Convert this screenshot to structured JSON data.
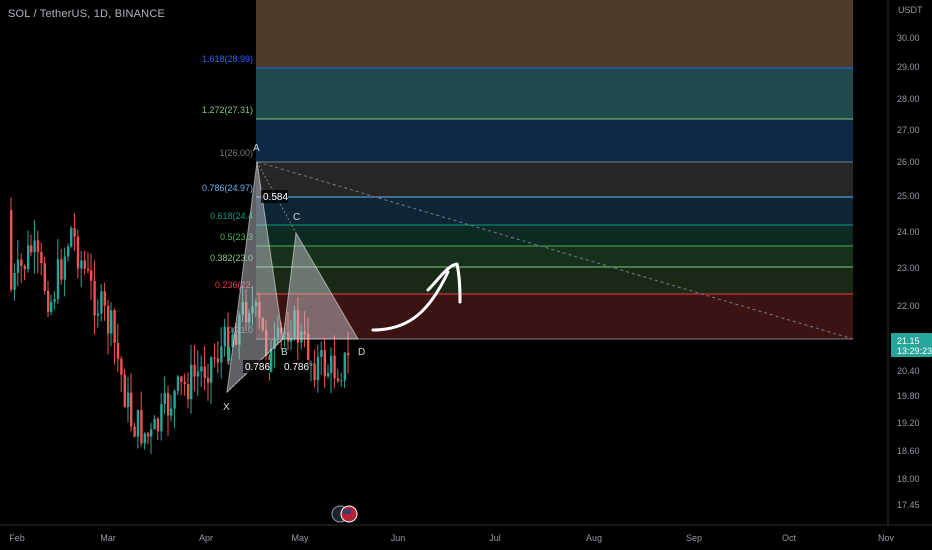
{
  "header": {
    "symbol_line": "SOL / TetherUS, 1D, BINANCE"
  },
  "price_axis": {
    "currency": "USDT",
    "ticks": [
      "30.00",
      "29.00",
      "28.00",
      "27.00",
      "26.00",
      "25.00",
      "24.00",
      "23.00",
      "22.00",
      "20.40",
      "19.80",
      "19.20",
      "18.60",
      "18.00",
      "17.45"
    ],
    "last_price": "21.15",
    "countdown": "13:29:23"
  },
  "time_axis": {
    "ticks": [
      "Feb",
      "Mar",
      "Apr",
      "May",
      "Jun",
      "Jul",
      "Aug",
      "Sep",
      "Oct",
      "Nov"
    ]
  },
  "colors": {
    "up": "#26a69a",
    "down": "#ef5350",
    "background": "#000000",
    "price_tag": "#26a69a",
    "harmonic_fill": "#d1d4dc"
  },
  "fib_levels": [
    {
      "label": "1.618(28.99)",
      "color": "#2962ff"
    },
    {
      "label": "1.272(27.31)",
      "color": "#81c784"
    },
    {
      "label": "1(26.00)",
      "color": "#787b86"
    },
    {
      "label": "0.786(24.97)",
      "color": "#64b5f6"
    },
    {
      "label": "0.618(24.4",
      "color": "#089981"
    },
    {
      "label": "0.5(23.3",
      "color": "#4caf50"
    },
    {
      "label": "0.382(23.0",
      "color": "#81c784"
    },
    {
      "label": "0.236(22.",
      "color": "#f23645"
    },
    {
      "label": "0(21.0",
      "color": "#787b86"
    }
  ],
  "harmonic": {
    "points": [
      "X",
      "A",
      "B",
      "C",
      "D"
    ],
    "ratios": [
      "0.584",
      "0.786",
      "0.786"
    ]
  },
  "chart_data": {
    "type": "candlestick",
    "symbol": "SOL / TetherUS",
    "interval": "1D",
    "exchange": "BINANCE",
    "y_unit": "USDT",
    "x_ticks": [
      "Feb",
      "Mar",
      "Apr",
      "May",
      "Jun",
      "Jul",
      "Aug",
      "Sep",
      "Oct",
      "Nov"
    ],
    "last_price": 21.15,
    "fib_retracement": [
      {
        "ratio": 1.618,
        "price": 28.99
      },
      {
        "ratio": 1.272,
        "price": 27.31
      },
      {
        "ratio": 1,
        "price": 26.0
      },
      {
        "ratio": 0.786,
        "price": 24.97
      },
      {
        "ratio": 0.618,
        "price": 24.4
      },
      {
        "ratio": 0.5,
        "price": 23.3
      },
      {
        "ratio": 0.382,
        "price": 23.0
      },
      {
        "ratio": 0.236,
        "price": 22.2
      },
      {
        "ratio": 0,
        "price": 21.0
      }
    ]
  }
}
